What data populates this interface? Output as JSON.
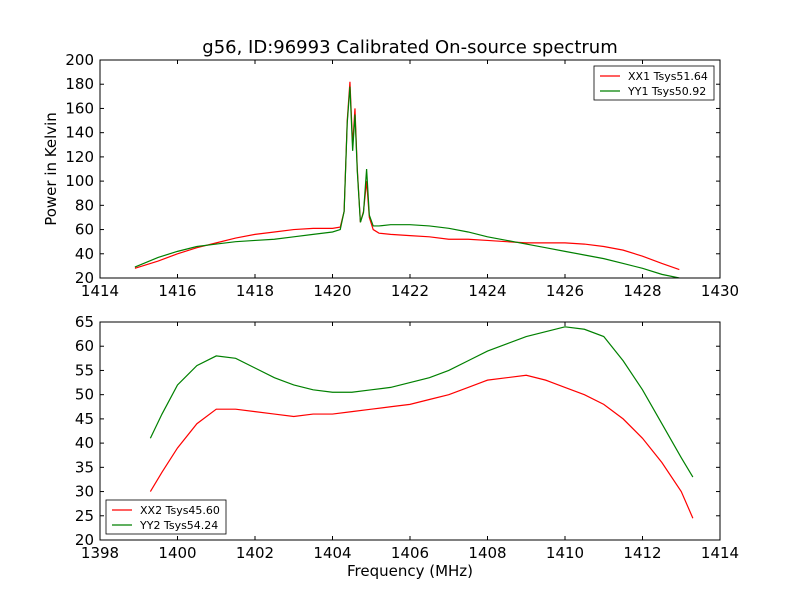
{
  "figure": {
    "title": "g56, ID:96993 Calibrated On-source spectrum"
  },
  "chart_data": [
    {
      "type": "line",
      "title": "g56, ID:96993 Calibrated On-source spectrum",
      "xlabel": "",
      "ylabel": "Power in Kelvin",
      "xlim": [
        1414,
        1430
      ],
      "ylim": [
        20,
        200
      ],
      "xticks": [
        "1414",
        "1416",
        "1418",
        "1420",
        "1422",
        "1424",
        "1426",
        "1428",
        "1430"
      ],
      "yticks": [
        "20",
        "40",
        "60",
        "80",
        "100",
        "120",
        "140",
        "160",
        "180",
        "200"
      ],
      "grid": false,
      "legend": "top-right",
      "series": [
        {
          "name": "XX1 Tsys51.64",
          "color": "#ff0000",
          "x": [
            1414.9,
            1415.5,
            1416,
            1416.5,
            1417,
            1417.5,
            1418,
            1418.5,
            1419,
            1419.5,
            1420,
            1420.2,
            1420.3,
            1420.38,
            1420.45,
            1420.52,
            1420.58,
            1420.64,
            1420.72,
            1420.8,
            1420.88,
            1420.95,
            1421.05,
            1421.2,
            1421.5,
            1422,
            1422.5,
            1423,
            1423.5,
            1424,
            1424.5,
            1425,
            1425.5,
            1426,
            1426.5,
            1427,
            1427.5,
            1428,
            1428.5,
            1428.95
          ],
          "y": [
            28,
            34,
            40,
            45,
            49,
            53,
            56,
            58,
            60,
            61,
            61,
            62,
            75,
            150,
            182,
            130,
            160,
            110,
            66,
            75,
            100,
            70,
            60,
            57,
            56,
            55,
            54,
            52,
            52,
            51,
            50,
            49,
            49,
            49,
            48,
            46,
            43,
            38,
            32,
            27
          ]
        },
        {
          "name": "YY1 Tsys50.92",
          "color": "#008000",
          "x": [
            1414.9,
            1415.5,
            1416,
            1416.5,
            1417,
            1417.5,
            1418,
            1418.5,
            1419,
            1419.5,
            1420,
            1420.2,
            1420.3,
            1420.38,
            1420.45,
            1420.52,
            1420.58,
            1420.64,
            1420.72,
            1420.8,
            1420.88,
            1420.95,
            1421.05,
            1421.2,
            1421.5,
            1422,
            1422.5,
            1423,
            1423.5,
            1424,
            1424.5,
            1425,
            1425.5,
            1426,
            1426.5,
            1427,
            1427.5,
            1428,
            1428.5,
            1428.95
          ],
          "y": [
            29,
            37,
            42,
            46,
            48,
            50,
            51,
            52,
            54,
            56,
            58,
            60,
            75,
            148,
            178,
            125,
            155,
            108,
            66,
            74,
            110,
            72,
            63,
            63,
            64,
            64,
            63,
            61,
            58,
            54,
            51,
            48,
            45,
            42,
            39,
            36,
            32,
            28,
            23,
            20
          ]
        }
      ]
    },
    {
      "type": "line",
      "title": "",
      "xlabel": "Frequency (MHz)",
      "ylabel": "",
      "xlim": [
        1398,
        1414
      ],
      "ylim": [
        20,
        65
      ],
      "xticks": [
        "1398",
        "1400",
        "1402",
        "1404",
        "1406",
        "1408",
        "1410",
        "1412",
        "1414"
      ],
      "yticks": [
        "20",
        "25",
        "30",
        "35",
        "40",
        "45",
        "50",
        "55",
        "60",
        "65"
      ],
      "grid": false,
      "legend": "bottom-left",
      "series": [
        {
          "name": "XX2 Tsys45.60",
          "color": "#ff0000",
          "x": [
            1399.3,
            1399.6,
            1400,
            1400.5,
            1401,
            1401.5,
            1402,
            1402.5,
            1403,
            1403.5,
            1404,
            1404.5,
            1405,
            1405.5,
            1406,
            1406.5,
            1407,
            1407.5,
            1408,
            1408.5,
            1409,
            1409.5,
            1410,
            1410.5,
            1411,
            1411.5,
            1412,
            1412.5,
            1413,
            1413.3
          ],
          "y": [
            30,
            34,
            39,
            44,
            47,
            47,
            46.5,
            46,
            45.5,
            46,
            46,
            46.5,
            47,
            47.5,
            48,
            49,
            50,
            51.5,
            53,
            53.5,
            54,
            53,
            51.5,
            50,
            48,
            45,
            41,
            36,
            30,
            24.5
          ]
        },
        {
          "name": "YY2 Tsys54.24",
          "color": "#008000",
          "x": [
            1399.3,
            1399.6,
            1400,
            1400.5,
            1401,
            1401.5,
            1402,
            1402.5,
            1403,
            1403.5,
            1404,
            1404.5,
            1405,
            1405.5,
            1406,
            1406.5,
            1407,
            1407.5,
            1408,
            1408.5,
            1409,
            1409.5,
            1410,
            1410.5,
            1411,
            1411.5,
            1412,
            1412.5,
            1413,
            1413.3
          ],
          "y": [
            41,
            46,
            52,
            56,
            58,
            57.5,
            55.5,
            53.5,
            52,
            51,
            50.5,
            50.5,
            51,
            51.5,
            52.5,
            53.5,
            55,
            57,
            59,
            60.5,
            62,
            63,
            64,
            63.5,
            62,
            57,
            51,
            44,
            37,
            33
          ]
        }
      ]
    }
  ]
}
